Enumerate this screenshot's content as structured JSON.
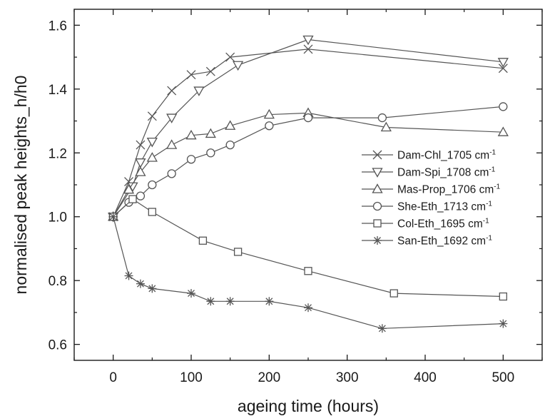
{
  "chart_data": {
    "type": "line",
    "title": "",
    "xlabel": "ageing time (hours)",
    "ylabel": "normalised peak heights_h/h0",
    "xlim": [
      -50,
      550
    ],
    "ylim": [
      0.55,
      1.65
    ],
    "xticks": [
      0,
      100,
      200,
      300,
      400,
      500
    ],
    "yticks": [
      0.6,
      0.8,
      1.0,
      1.2,
      1.4,
      1.6
    ],
    "xtick_labels": [
      "0",
      "100",
      "200",
      "300",
      "400",
      "500"
    ],
    "ytick_labels": [
      "0.6",
      "0.8",
      "1.0",
      "1.2",
      "1.4",
      "1.6"
    ],
    "grid": false,
    "legend_position": "right",
    "legend_unit": "cm",
    "legend_unit_exp": "-1",
    "series": [
      {
        "name": "Dam-Chl_1705",
        "marker": "x",
        "x": [
          0,
          20,
          35,
          50,
          75,
          100,
          125,
          150,
          250,
          500
        ],
        "y": [
          1.0,
          1.11,
          1.225,
          1.315,
          1.395,
          1.445,
          1.455,
          1.5,
          1.525,
          1.465
        ]
      },
      {
        "name": "Dam-Spi_1708",
        "marker": "triangle-down",
        "x": [
          0,
          25,
          35,
          50,
          75,
          110,
          160,
          250,
          500
        ],
        "y": [
          1.0,
          1.095,
          1.17,
          1.235,
          1.31,
          1.395,
          1.475,
          1.555,
          1.485
        ]
      },
      {
        "name": "Mas-Prop_1706",
        "marker": "triangle-up",
        "x": [
          0,
          20,
          35,
          50,
          75,
          100,
          125,
          150,
          200,
          250,
          350,
          500
        ],
        "y": [
          1.0,
          1.085,
          1.14,
          1.185,
          1.225,
          1.255,
          1.26,
          1.285,
          1.32,
          1.325,
          1.28,
          1.265
        ]
      },
      {
        "name": "She-Eth_1713",
        "marker": "circle",
        "x": [
          0,
          20,
          35,
          50,
          75,
          100,
          125,
          150,
          200,
          250,
          345,
          500
        ],
        "y": [
          1.0,
          1.045,
          1.065,
          1.1,
          1.135,
          1.18,
          1.2,
          1.225,
          1.285,
          1.31,
          1.31,
          1.345
        ]
      },
      {
        "name": "Col-Eth_1695",
        "marker": "square",
        "x": [
          0,
          25,
          50,
          115,
          160,
          250,
          360,
          500
        ],
        "y": [
          1.0,
          1.055,
          1.015,
          0.925,
          0.89,
          0.83,
          0.76,
          0.75
        ]
      },
      {
        "name": "San-Eth_1692",
        "marker": "asterisk",
        "x": [
          0,
          20,
          35,
          50,
          100,
          125,
          150,
          200,
          250,
          345,
          500
        ],
        "y": [
          1.0,
          0.815,
          0.79,
          0.775,
          0.76,
          0.735,
          0.735,
          0.735,
          0.715,
          0.65,
          0.665
        ]
      }
    ]
  }
}
